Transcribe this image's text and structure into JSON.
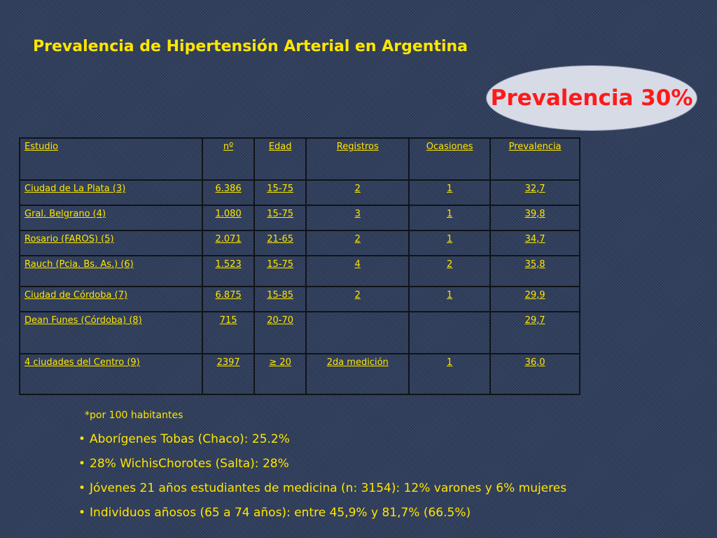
{
  "title": "Prevalencia de Hipertensión Arterial en Argentina",
  "badge": "Prevalencia 30%",
  "table": {
    "headers": [
      "Estudio",
      "nº",
      "Edad",
      "Registros",
      "Ocasiones",
      "Prevalencia"
    ],
    "rows": [
      [
        "Ciudad de La Plata (3)",
        "6.386",
        "15-75",
        "2",
        "1",
        "32,7"
      ],
      [
        "Gral. Belgrano (4)",
        "1.080",
        "15-75",
        "3",
        "1",
        "39,8"
      ],
      [
        "Rosario (FAROS) (5)",
        "2.071",
        "21-65",
        "2",
        "1",
        "34,7"
      ],
      [
        "Rauch (Pcia. Bs. As.) (6)",
        "1.523",
        "15-75",
        "4",
        "2",
        "35,8"
      ],
      [
        "Ciudad de Córdoba (7)",
        "6.875",
        "15-85",
        "2",
        "1",
        "29,9"
      ],
      [
        "Dean Funes (Córdoba) (8)",
        "715",
        "20-70",
        "",
        "",
        "29,7"
      ],
      [
        "4 ciudades del Centro (9)",
        "2397",
        "≥ 20",
        "2da medición",
        "1",
        "36,0"
      ]
    ]
  },
  "note": "*por 100 habitantes",
  "bullets": [
    "Aborígenes Tobas (Chaco): 25.2%",
    "28% WichisChorotes (Salta): 28%",
    "Jóvenes 21 años estudiantes de medicina (n: 3154): 12% varones y 6% mujeres",
    "Individuos añosos (65 a 74 años): entre 45,9% y 81,7%  (66.5%)"
  ],
  "colors": {
    "background": "#2f3e5c",
    "text": "#ffe600",
    "badge_fill": "#d7dbe6",
    "badge_text": "#ff1a1a"
  }
}
